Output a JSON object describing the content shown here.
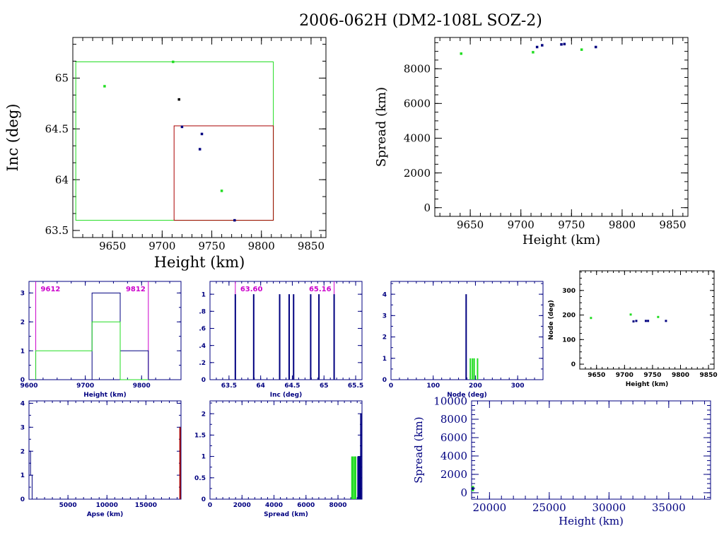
{
  "title": "2006-062H (DM2-108L SOZ-2)",
  "colors": {
    "black": "#000000",
    "navy": "#000080",
    "green": "#22dd22",
    "red": "#aa0000",
    "magenta": "#cc00cc"
  },
  "chart_data": [
    {
      "id": "p1",
      "type": "scatter",
      "xlabel": "Height (km)",
      "ylabel": "Inc (deg)",
      "xlim": [
        9610,
        9865
      ],
      "ylim": [
        63.43,
        65.4
      ],
      "xticks": [
        9650,
        9700,
        9750,
        9800,
        9850
      ],
      "yticks": [
        63.5,
        64,
        64.5,
        65
      ],
      "xticklabels": [
        "9650",
        "9700",
        "9750",
        "9800",
        "9850"
      ],
      "yticklabels": [
        "63.5",
        "64",
        "64.5",
        "65"
      ],
      "boxes": [
        {
          "x": [
            9613,
            9812
          ],
          "y": [
            63.6,
            65.16
          ],
          "color": "green"
        },
        {
          "x": [
            9712,
            9812
          ],
          "y": [
            63.6,
            64.53
          ],
          "color": "red"
        }
      ],
      "series": [
        {
          "color": "green",
          "points": [
            [
              9642,
              64.92
            ],
            [
              9711,
              65.16
            ],
            [
              9760,
              63.89
            ]
          ]
        },
        {
          "color": "black",
          "points": [
            [
              9717,
              64.79
            ]
          ]
        },
        {
          "color": "navy",
          "points": [
            [
              9720,
              64.52
            ],
            [
              9740,
              64.45
            ],
            [
              9738,
              64.3
            ],
            [
              9773,
              63.6
            ]
          ]
        }
      ]
    },
    {
      "id": "p2",
      "type": "scatter",
      "xlabel": "Height (km)",
      "ylabel": "Spread (km)",
      "xlim": [
        9615,
        9865
      ],
      "ylim": [
        -500,
        9800
      ],
      "xticks": [
        9650,
        9700,
        9750,
        9800,
        9850
      ],
      "yticks": [
        0,
        2000,
        4000,
        6000,
        8000
      ],
      "xticklabels": [
        "9650",
        "9700",
        "9750",
        "9800",
        "9850"
      ],
      "yticklabels": [
        "0",
        "2000",
        "4000",
        "6000",
        "8000"
      ],
      "series": [
        {
          "color": "green",
          "points": [
            [
              9641,
              8870
            ],
            [
              9712,
              8950
            ],
            [
              9760,
              9100
            ]
          ]
        },
        {
          "color": "navy",
          "points": [
            [
              9716,
              9250
            ],
            [
              9721,
              9350
            ],
            [
              9740,
              9400
            ],
            [
              9743,
              9420
            ],
            [
              9774,
              9250
            ]
          ]
        }
      ]
    },
    {
      "id": "p3",
      "type": "histogram",
      "xlabel": "Height (km)",
      "ylabel": "",
      "xlim": [
        9600,
        9870
      ],
      "ylim": [
        0,
        3.4
      ],
      "xticks": [
        9600,
        9700,
        9800
      ],
      "yticks": [
        0,
        1,
        2,
        3
      ],
      "xticklabels": [
        "9600",
        "9700",
        "9800"
      ],
      "yticklabels": [
        "0",
        "1",
        "2",
        "3"
      ],
      "vlines": [
        {
          "x": 9612,
          "color": "magenta",
          "label": "9612"
        },
        {
          "x": 9812,
          "color": "magenta",
          "label": "9812"
        }
      ],
      "series": [
        {
          "color": "navy",
          "steps": [
            [
              9612,
              9712,
              0
            ],
            [
              9712,
              9762,
              3
            ],
            [
              9762,
              9812,
              1
            ]
          ]
        },
        {
          "color": "green",
          "steps": [
            [
              9612,
              9712,
              1
            ],
            [
              9712,
              9762,
              2
            ],
            [
              9762,
              9812,
              0
            ]
          ]
        }
      ]
    },
    {
      "id": "p4",
      "type": "histogram",
      "xlabel": "Inc (deg)",
      "ylabel": "",
      "xlim": [
        63.2,
        65.6
      ],
      "ylim": [
        0,
        1.15
      ],
      "xticks": [
        63.5,
        64,
        64.5,
        65,
        65.5
      ],
      "yticks": [
        0,
        0.2,
        0.4,
        0.6,
        0.8,
        1
      ],
      "xticklabels": [
        "63.5",
        "64",
        "64.5",
        "65",
        "65.5"
      ],
      "yticklabels": [
        "0",
        ".2",
        ".4",
        ".6",
        ".8",
        "1"
      ],
      "vlines": [
        {
          "x": 63.6,
          "color": "magenta",
          "label": "63.60"
        },
        {
          "x": 65.16,
          "color": "magenta",
          "label": "65.16"
        }
      ],
      "series": [
        {
          "color": "navy",
          "bars": [
            [
              63.6,
              1
            ],
            [
              63.89,
              1
            ],
            [
              64.3,
              1
            ],
            [
              64.45,
              1
            ],
            [
              64.52,
              1
            ],
            [
              64.79,
              1
            ],
            [
              64.92,
              1
            ],
            [
              65.16,
              1
            ]
          ]
        }
      ]
    },
    {
      "id": "p5",
      "type": "histogram",
      "xlabel": "Node (deg)",
      "ylabel": "",
      "xlim": [
        0,
        360
      ],
      "ylim": [
        0,
        4.6
      ],
      "xticks": [
        0,
        100,
        200,
        300
      ],
      "yticks": [
        0,
        1,
        2,
        3,
        4
      ],
      "xticklabels": [
        "0",
        "100",
        "200",
        "300"
      ],
      "yticklabels": [
        "0",
        "1",
        "2",
        "3",
        "4"
      ],
      "series": [
        {
          "color": "navy",
          "bars": [
            [
              178,
              4
            ]
          ]
        },
        {
          "color": "green",
          "bars": [
            [
              188,
              1
            ],
            [
              193,
              1
            ],
            [
              197,
              1
            ],
            [
              205,
              1
            ]
          ]
        }
      ]
    },
    {
      "id": "p6",
      "type": "scatter",
      "xlabel": "Height (km)",
      "ylabel": "Node (deg)",
      "xlim": [
        9620,
        9860
      ],
      "ylim": [
        -20,
        380
      ],
      "xticks": [
        9650,
        9700,
        9750,
        9800,
        9850
      ],
      "yticks": [
        0,
        100,
        200,
        300
      ],
      "xticklabels": [
        "9650",
        "9700",
        "9750",
        "9800",
        "9850"
      ],
      "yticklabels": [
        "0",
        "100",
        "200",
        "300"
      ],
      "series": [
        {
          "color": "green",
          "points": [
            [
              9640,
              188
            ],
            [
              9711,
              202
            ],
            [
              9760,
              192
            ]
          ]
        },
        {
          "color": "navy",
          "points": [
            [
              9716,
              174
            ],
            [
              9721,
              176
            ],
            [
              9738,
              176
            ],
            [
              9742,
              176
            ],
            [
              9774,
              176
            ]
          ]
        }
      ]
    },
    {
      "id": "p7",
      "type": "histogram",
      "xlabel": "Apse (km)",
      "ylabel": "",
      "xlim": [
        0,
        19500
      ],
      "ylim": [
        0,
        4.1
      ],
      "xticks": [
        5000,
        10000,
        15000
      ],
      "yticks": [
        0,
        1,
        2,
        3,
        4
      ],
      "xticklabels": [
        "5000",
        "10000",
        "15000"
      ],
      "yticklabels": [
        "0",
        "1",
        "2",
        "3",
        "4"
      ],
      "series": [
        {
          "color": "navy",
          "steps": [
            [
              0,
              200,
              2
            ],
            [
              200,
              400,
              1
            ],
            [
              400,
              600,
              0
            ]
          ]
        },
        {
          "color": "red",
          "bars": [
            [
              19380,
              3
            ]
          ]
        }
      ]
    },
    {
      "id": "p8",
      "type": "histogram",
      "xlabel": "Spread (km)",
      "ylabel": "",
      "xlim": [
        0,
        9500
      ],
      "ylim": [
        0,
        2.3
      ],
      "xticks": [
        0,
        2000,
        4000,
        6000,
        8000
      ],
      "yticks": [
        0,
        0.5,
        1,
        1.5,
        2
      ],
      "xticklabels": [
        "0",
        "2000",
        "4000",
        "6000",
        "8000"
      ],
      "yticklabels": [
        "0",
        "0.5",
        "1",
        "1.5",
        "2"
      ],
      "series": [
        {
          "color": "green",
          "bars": [
            [
              8870,
              1
            ],
            [
              8950,
              1
            ],
            [
              9050,
              1
            ],
            [
              9100,
              1
            ]
          ]
        },
        {
          "color": "navy",
          "bars": [
            [
              9250,
              1
            ],
            [
              9300,
              1
            ],
            [
              9350,
              1
            ],
            [
              9400,
              1
            ],
            [
              9430,
              2
            ]
          ]
        }
      ]
    },
    {
      "id": "p9",
      "type": "scatter",
      "xlabel": "Height (km)",
      "ylabel": "Spread (km)",
      "xlim": [
        18500,
        38500
      ],
      "ylim": [
        -700,
        10000
      ],
      "xticks": [
        20000,
        25000,
        30000,
        35000
      ],
      "yticks": [
        0,
        2000,
        4000,
        6000,
        8000,
        10000
      ],
      "xticklabels": [
        "20000",
        "25000",
        "30000",
        "35000"
      ],
      "yticklabels": [
        "0",
        "2000",
        "4000",
        "6000",
        "8000",
        "10000"
      ],
      "series": [
        {
          "color": "green",
          "points": [
            [
              18600,
              600
            ],
            [
              18600,
              300
            ]
          ]
        },
        {
          "color": "navy",
          "points": [
            [
              18600,
              450
            ]
          ]
        }
      ]
    }
  ]
}
